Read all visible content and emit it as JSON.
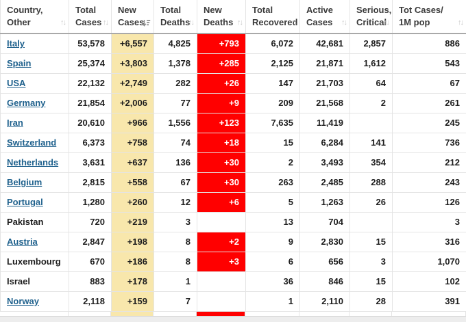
{
  "colors": {
    "new_cases_bg": "#F8E7AC",
    "new_deaths_bg": "#FF0000",
    "new_deaths_text": "#FFFFFF",
    "link_blue": "#1F618D",
    "header_text": "#3B3B3B"
  },
  "table": {
    "header": [
      {
        "lines": [
          "Country,",
          "Other"
        ],
        "sorted": false
      },
      {
        "lines": [
          "Total",
          "Cases"
        ],
        "sorted": false
      },
      {
        "lines": [
          "New",
          "Cases"
        ],
        "sorted": true
      },
      {
        "lines": [
          "Total",
          "Deaths"
        ],
        "sorted": false
      },
      {
        "lines": [
          "New",
          "Deaths"
        ],
        "sorted": false
      },
      {
        "lines": [
          "Total",
          "Recovered"
        ],
        "sorted": false
      },
      {
        "lines": [
          "Active",
          "Cases"
        ],
        "sorted": false
      },
      {
        "lines": [
          "Serious,",
          "Critical"
        ],
        "sorted": false
      },
      {
        "lines": [
          "Tot Cases/",
          "1M pop"
        ],
        "sorted": false
      }
    ]
  },
  "chart_data": {
    "type": "table",
    "columns": [
      "Country, Other",
      "Total Cases",
      "New Cases",
      "Total Deaths",
      "New Deaths",
      "Total Recovered",
      "Active Cases",
      "Serious, Critical",
      "Tot Cases/ 1M pop"
    ],
    "sorted_by": "New Cases",
    "sort_direction": "desc",
    "rows": [
      [
        "Italy",
        "53,578",
        "+6,557",
        "4,825",
        "+793",
        "6,072",
        "42,681",
        "2,857",
        "886"
      ],
      [
        "Spain",
        "25,374",
        "+3,803",
        "1,378",
        "+285",
        "2,125",
        "21,871",
        "1,612",
        "543"
      ],
      [
        "USA",
        "22,132",
        "+2,749",
        "282",
        "+26",
        "147",
        "21,703",
        "64",
        "67"
      ],
      [
        "Germany",
        "21,854",
        "+2,006",
        "77",
        "+9",
        "209",
        "21,568",
        "2",
        "261"
      ],
      [
        "Iran",
        "20,610",
        "+966",
        "1,556",
        "+123",
        "7,635",
        "11,419",
        "",
        "245"
      ],
      [
        "Switzerland",
        "6,373",
        "+758",
        "74",
        "+18",
        "15",
        "6,284",
        "141",
        "736"
      ],
      [
        "Netherlands",
        "3,631",
        "+637",
        "136",
        "+30",
        "2",
        "3,493",
        "354",
        "212"
      ],
      [
        "Belgium",
        "2,815",
        "+558",
        "67",
        "+30",
        "263",
        "2,485",
        "288",
        "243"
      ],
      [
        "Portugal",
        "1,280",
        "+260",
        "12",
        "+6",
        "5",
        "1,263",
        "26",
        "126"
      ],
      [
        "Pakistan",
        "720",
        "+219",
        "3",
        "",
        "13",
        "704",
        "",
        "3"
      ],
      [
        "Austria",
        "2,847",
        "+198",
        "8",
        "+2",
        "9",
        "2,830",
        "15",
        "316"
      ],
      [
        "Luxembourg",
        "670",
        "+186",
        "8",
        "+3",
        "6",
        "656",
        "3",
        "1,070"
      ],
      [
        "Israel",
        "883",
        "+178",
        "1",
        "",
        "36",
        "846",
        "15",
        "102"
      ],
      [
        "Norway",
        "2,118",
        "+159",
        "7",
        "",
        "1",
        "2,110",
        "28",
        "391"
      ]
    ],
    "country_links": [
      "Italy",
      "Spain",
      "USA",
      "Germany",
      "Iran",
      "Switzerland",
      "Netherlands",
      "Belgium",
      "Portugal",
      "Austria",
      "Norway"
    ]
  }
}
